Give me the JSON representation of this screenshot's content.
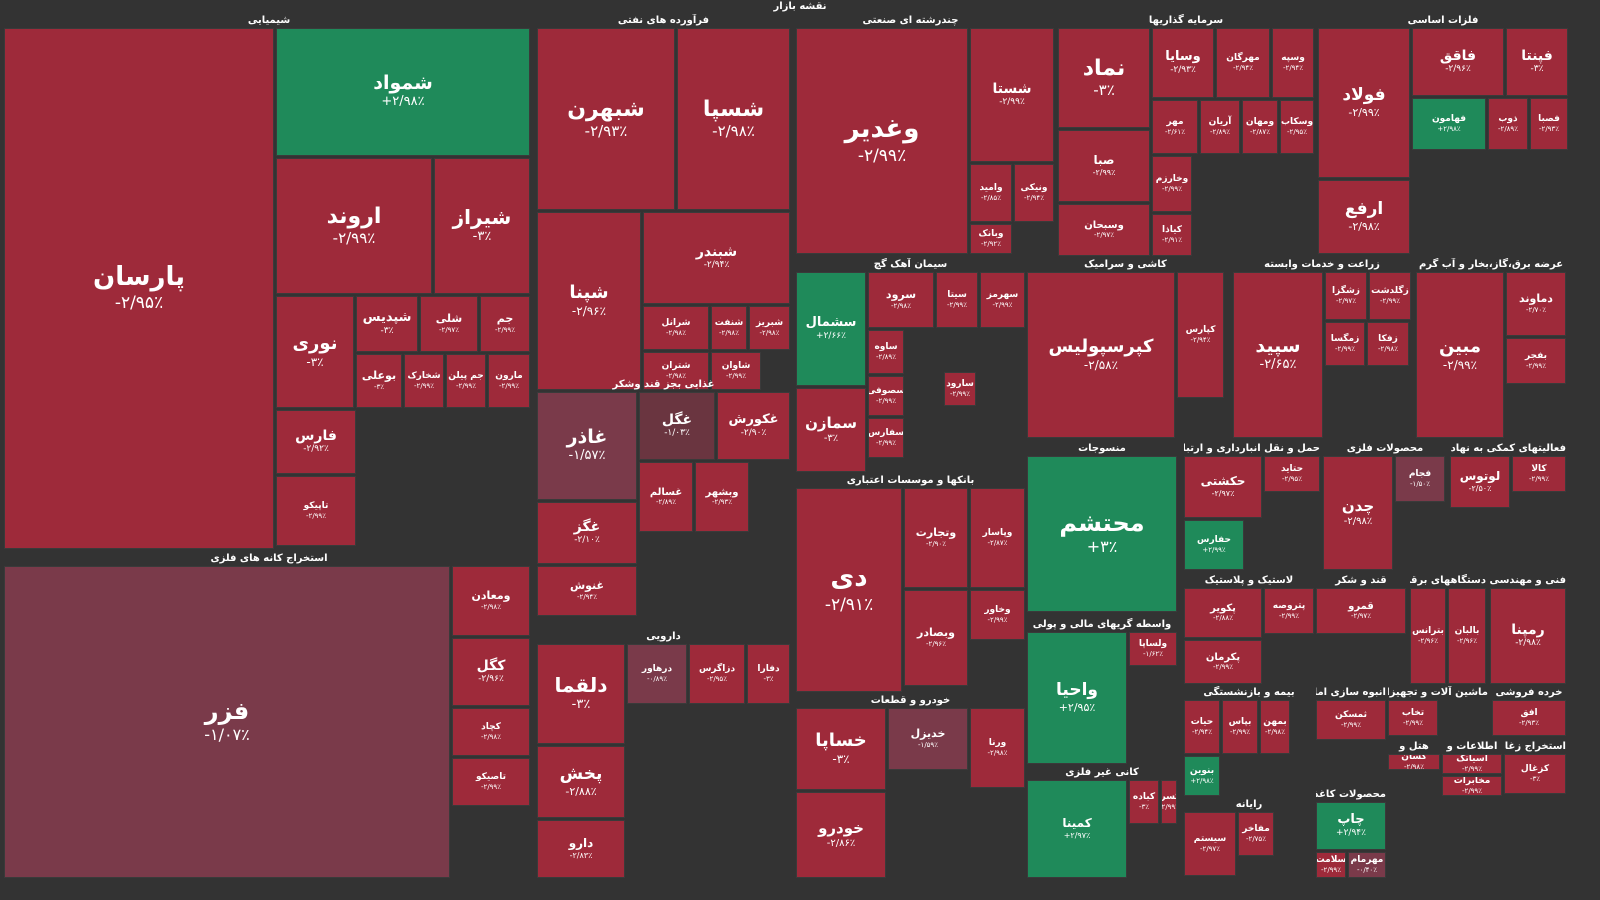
{
  "title": "نقشه بازار",
  "colors": {
    "down": "#9e2a3a",
    "up": "#1f8a5a",
    "neutral": "#7a3a4a",
    "mild": "#6a3540"
  },
  "sectors": [
    {
      "name": "شیمیایی",
      "tiles": [
        {
          "s": "پارسان",
          "p": "-۲/۹۵٪",
          "c": "down"
        },
        {
          "s": "شمواد",
          "p": "+۲/۹۸٪",
          "c": "up"
        },
        {
          "s": "اروند",
          "p": "-۲/۹۹٪",
          "c": "down"
        },
        {
          "s": "شیراز",
          "p": "-۳٪",
          "c": "down"
        },
        {
          "s": "نوری",
          "p": "-۳٪",
          "c": "down"
        },
        {
          "s": "شپدیس",
          "p": "-۳٪",
          "c": "down"
        },
        {
          "s": "شلی",
          "p": "-۲/۹۷٪",
          "c": "down"
        },
        {
          "s": "جم",
          "p": "-۲/۹۹٪",
          "c": "down"
        },
        {
          "s": "بوعلی",
          "p": "-۳٪",
          "c": "down"
        },
        {
          "s": "شخارک",
          "p": "-۲/۹۹٪",
          "c": "down"
        },
        {
          "s": "جم پیلن",
          "p": "-۲/۹۹٪",
          "c": "down"
        },
        {
          "s": "مارون",
          "p": "-۲/۹۹٪",
          "c": "down"
        },
        {
          "s": "فارس",
          "p": "-۲/۹۲٪",
          "c": "down"
        },
        {
          "s": "تاپیکو",
          "p": "-۲/۹۹٪",
          "c": "down"
        }
      ]
    },
    {
      "name": "فرآورده های نفتی",
      "tiles": [
        {
          "s": "شبهرن",
          "p": "-۲/۹۳٪",
          "c": "down"
        },
        {
          "s": "شسپا",
          "p": "-۲/۹۸٪",
          "c": "down"
        },
        {
          "s": "شپنا",
          "p": "-۲/۹۶٪",
          "c": "down"
        },
        {
          "s": "شبندر",
          "p": "-۲/۹۴٪",
          "c": "down"
        },
        {
          "s": "شرانل",
          "p": "-۲/۹۸٪",
          "c": "down"
        },
        {
          "s": "شنفت",
          "p": "-۲/۹۸٪",
          "c": "down"
        },
        {
          "s": "شبریز",
          "p": "-۲/۹۸٪",
          "c": "down"
        },
        {
          "s": "شتران",
          "p": "-۲/۹۸٪",
          "c": "down"
        },
        {
          "s": "شاوان",
          "p": "-۲/۹۹٪",
          "c": "down"
        }
      ]
    },
    {
      "name": "چندرشته ای صنعتی",
      "tiles": [
        {
          "s": "وغدیر",
          "p": "-۲/۹۹٪",
          "c": "down"
        },
        {
          "s": "شستا",
          "p": "-۲/۹۹٪",
          "c": "down"
        },
        {
          "s": "وامید",
          "p": "-۲/۸۵٪",
          "c": "down"
        },
        {
          "s": "ونیکی",
          "p": "-۲/۹۴٪",
          "c": "down"
        },
        {
          "s": "وبانک",
          "p": "-۲/۹۲٪",
          "c": "down"
        }
      ]
    },
    {
      "name": "سرمایه گذاریها",
      "tiles": [
        {
          "s": "نماد",
          "p": "-۳٪",
          "c": "down"
        },
        {
          "s": "صبا",
          "p": "-۲/۹۹٪",
          "c": "down"
        },
        {
          "s": "وسبحان",
          "p": "-۲/۹۷٪",
          "c": "down"
        },
        {
          "s": "وسایا",
          "p": "-۲/۹۳٪",
          "c": "down"
        },
        {
          "s": "مهرگان",
          "p": "-۲/۹۴٪",
          "c": "down"
        },
        {
          "s": "وسپه",
          "p": "-۲/۹۴٪",
          "c": "down"
        },
        {
          "s": "مهر",
          "p": "-۲/۶۱٪",
          "c": "down"
        },
        {
          "s": "آریان",
          "p": "-۲/۸۹٪",
          "c": "down"
        },
        {
          "s": "ومهان",
          "p": "-۲/۸۷٪",
          "c": "down"
        },
        {
          "s": "وسکاب",
          "p": "-۲/۹۵٪",
          "c": "down"
        },
        {
          "s": "وخارزم",
          "p": "-۲/۹۹٪",
          "c": "down"
        },
        {
          "s": "کیاذا",
          "p": "-۲/۹۱٪",
          "c": "down"
        }
      ]
    },
    {
      "name": "فلزات اساسی",
      "tiles": [
        {
          "s": "فولاد",
          "p": "-۲/۹۹٪",
          "c": "down"
        },
        {
          "s": "فاقق",
          "p": "-۲/۹۶٪",
          "c": "down"
        },
        {
          "s": "فپنتا",
          "p": "-۳٪",
          "c": "down"
        },
        {
          "s": "فهامون",
          "p": "+۲/۹۸٪",
          "c": "up"
        },
        {
          "s": "ارفع",
          "p": "-۲/۹۸٪",
          "c": "down"
        },
        {
          "s": "ذوب",
          "p": "-۲/۸۹٪",
          "c": "down"
        },
        {
          "s": "فصبا",
          "p": "-۲/۹۳٪",
          "c": "down"
        }
      ]
    },
    {
      "name": "سیمان آهک گچ",
      "tiles": [
        {
          "s": "سشمال",
          "p": "+۲/۶۶٪",
          "c": "up"
        },
        {
          "s": "سرود",
          "p": "-۲/۹۸٪",
          "c": "down"
        },
        {
          "s": "سیتا",
          "p": "-۲/۹۹٪",
          "c": "down"
        },
        {
          "s": "سهرمز",
          "p": "-۲/۹۹٪",
          "c": "down"
        },
        {
          "s": "سمازن",
          "p": "-۳٪",
          "c": "down"
        },
        {
          "s": "ساوه",
          "p": "-۲/۸۹٪",
          "c": "down"
        },
        {
          "s": "سارود",
          "p": "-۲/۹۹٪",
          "c": "down"
        },
        {
          "s": "سصوفی",
          "p": "-۲/۹۹٪",
          "c": "down"
        },
        {
          "s": "سفارس",
          "p": "-۲/۹۹٪",
          "c": "down"
        }
      ]
    },
    {
      "name": "کاشی و سرامیک",
      "tiles": [
        {
          "s": "کپرسپولیس",
          "p": "-۲/۵۸٪",
          "c": "down"
        },
        {
          "s": "کپارس",
          "p": "-۲/۹۴٪",
          "c": "down"
        }
      ]
    },
    {
      "name": "زراعت و خدمات وابسته",
      "tiles": [
        {
          "s": "سپید",
          "p": "-۲/۶۵٪",
          "c": "down"
        },
        {
          "s": "زشگزا",
          "p": "-۲/۹۷٪",
          "c": "down"
        },
        {
          "s": "زگلدشت",
          "p": "-۲/۹۹٪",
          "c": "down"
        },
        {
          "s": "زمگسا",
          "p": "-۲/۹۹٪",
          "c": "down"
        },
        {
          "s": "زفکا",
          "p": "-۲/۹۸٪",
          "c": "down"
        }
      ]
    },
    {
      "name": "عرضه برق،گاز،بخار و آب گرم",
      "tiles": [
        {
          "s": "مبین",
          "p": "-۲/۹۹٪",
          "c": "down"
        },
        {
          "s": "دماوند",
          "p": "-۲/۷۰٪",
          "c": "down"
        },
        {
          "s": "بفجر",
          "p": "-۲/۹۹٪",
          "c": "down"
        }
      ]
    },
    {
      "name": "غذایی بجز قند وشکر",
      "tiles": [
        {
          "s": "غاذر",
          "p": "-۱/۵۷٪",
          "c": "neutral"
        },
        {
          "s": "غگل",
          "p": "-۱/۰۳٪",
          "c": "mild"
        },
        {
          "s": "غکورش",
          "p": "-۲/۹۰٪",
          "c": "down"
        },
        {
          "s": "غسالم",
          "p": "-۲/۸۹٪",
          "c": "down"
        },
        {
          "s": "وبشهر",
          "p": "-۲/۹۳٪",
          "c": "down"
        },
        {
          "s": "غگز",
          "p": "-۲/۱۰٪",
          "c": "down"
        },
        {
          "s": "غنوش",
          "p": "-۲/۹۴٪",
          "c": "down"
        }
      ]
    },
    {
      "name": "دارویی",
      "tiles": [
        {
          "s": "دلقما",
          "p": "-۳٪",
          "c": "down"
        },
        {
          "s": "درهاور",
          "p": "-۰/۸۹٪",
          "c": "neutral"
        },
        {
          "s": "دزاگرس",
          "p": "-۲/۹۵٪",
          "c": "down"
        },
        {
          "s": "دفارا",
          "p": "-۳٪",
          "c": "down"
        },
        {
          "s": "پخش",
          "p": "-۲/۸۸٪",
          "c": "down"
        },
        {
          "s": "دارو",
          "p": "-۲/۸۳٪",
          "c": "down"
        }
      ]
    },
    {
      "name": "استخراج کانه های فلزی",
      "tiles": [
        {
          "s": "فزر",
          "p": "-۱/۰۷٪",
          "c": "neutral"
        },
        {
          "s": "ومعادن",
          "p": "-۲/۹۸٪",
          "c": "down"
        },
        {
          "s": "کگل",
          "p": "-۲/۹۶٪",
          "c": "down"
        },
        {
          "s": "کچاد",
          "p": "-۲/۹۸٪",
          "c": "down"
        },
        {
          "s": "تاصیکو",
          "p": "-۲/۹۹٪",
          "c": "down"
        }
      ]
    },
    {
      "name": "بانکها و موسسات اعتباری",
      "tiles": [
        {
          "s": "دی",
          "p": "-۲/۹۱٪",
          "c": "down"
        },
        {
          "s": "وتجارت",
          "p": "-۲/۹۰٪",
          "c": "down"
        },
        {
          "s": "وپاسار",
          "p": "-۲/۸۷٪",
          "c": "down"
        },
        {
          "s": "وبصادر",
          "p": "-۲/۹۶٪",
          "c": "down"
        },
        {
          "s": "وخاور",
          "p": "-۲/۹۹٪",
          "c": "down"
        }
      ]
    },
    {
      "name": "خودرو و قطعات",
      "tiles": [
        {
          "s": "خساپا",
          "p": "-۳٪",
          "c": "down"
        },
        {
          "s": "خدیزل",
          "p": "-۱/۵۹٪",
          "c": "neutral"
        },
        {
          "s": "ورنا",
          "p": "-۲/۹۸٪",
          "c": "down"
        },
        {
          "s": "خودرو",
          "p": "-۲/۸۶٪",
          "c": "down"
        }
      ]
    },
    {
      "name": "منسوجات",
      "tiles": [
        {
          "s": "محتشم",
          "p": "+۳٪",
          "c": "up"
        }
      ]
    },
    {
      "name": "واسطه گریهای مالی و پولی",
      "tiles": [
        {
          "s": "واحیا",
          "p": "+۲/۹۵٪",
          "c": "up"
        },
        {
          "s": "ولساپا",
          "p": "-۱/۶۲٪",
          "c": "down"
        }
      ]
    },
    {
      "name": "کانی غیر فلزی",
      "tiles": [
        {
          "s": "کمینا",
          "p": "+۲/۹۷٪",
          "c": "up"
        },
        {
          "s": "کباده",
          "p": "-۳٪",
          "c": "down"
        },
        {
          "s": "کسرا",
          "p": "-۲/۹۹٪",
          "c": "down"
        }
      ]
    },
    {
      "name": "حمل و نقل انبارداری و ارتباطات",
      "tiles": [
        {
          "s": "حکشتی",
          "p": "-۲/۹۷٪",
          "c": "down"
        },
        {
          "s": "حتاید",
          "p": "-۲/۹۵٪",
          "c": "down"
        },
        {
          "s": "حفارس",
          "p": "+۲/۹۹٪",
          "c": "up"
        }
      ]
    },
    {
      "name": "محصولات فلزی",
      "tiles": [
        {
          "s": "چدن",
          "p": "-۲/۹۸٪",
          "c": "down"
        },
        {
          "s": "فجام",
          "p": "-۱/۵۰٪",
          "c": "neutral"
        }
      ]
    },
    {
      "name": "فعالیتهای کمکی به نهاد های",
      "tiles": [
        {
          "s": "لوتوس",
          "p": "-۲/۵۰٪",
          "c": "down"
        },
        {
          "s": "کالا",
          "p": "-۲/۹۹٪",
          "c": "down"
        }
      ]
    },
    {
      "name": "لاستیک و پلاستیک",
      "tiles": [
        {
          "s": "پکویر",
          "p": "-۲/۸۸٪",
          "c": "down"
        },
        {
          "s": "پتروصه",
          "p": "-۲/۹۹٪",
          "c": "down"
        },
        {
          "s": "پکرمان",
          "p": "-۲/۹۹٪",
          "c": "down"
        }
      ]
    },
    {
      "name": "قند و شکر",
      "tiles": [
        {
          "s": "قمرو",
          "p": "-۲/۹۷٪",
          "c": "down"
        }
      ]
    },
    {
      "name": "دستگاههای برقی",
      "tiles": [
        {
          "s": "بترانس",
          "p": "-۲/۹۶٪",
          "c": "down"
        },
        {
          "s": "بالبان",
          "p": "-۲/۹۶٪",
          "c": "down"
        }
      ]
    },
    {
      "name": "فنی و مهندسی",
      "tiles": [
        {
          "s": "رمپنا",
          "p": "-۲/۹۸٪",
          "c": "down"
        }
      ]
    },
    {
      "name": "بیمه و بازنشستگی",
      "tiles": [
        {
          "s": "حیات",
          "p": "-۲/۹۴٪",
          "c": "down"
        },
        {
          "s": "بپاس",
          "p": "-۲/۹۹٪",
          "c": "down"
        },
        {
          "s": "بمهن",
          "p": "-۲/۹۸٪",
          "c": "down"
        },
        {
          "s": "بنوین",
          "p": "+۲/۹۸٪",
          "c": "up"
        }
      ]
    },
    {
      "name": "انبوه سازی املاک",
      "tiles": [
        {
          "s": "ثمسکن",
          "p": "-۲/۹۹٪",
          "c": "down"
        }
      ]
    },
    {
      "name": "ماشین آلات و تجهیزات",
      "tiles": [
        {
          "s": "تخاب",
          "p": "-۲/۹۹٪",
          "c": "down"
        }
      ]
    },
    {
      "name": "خرده فروشی",
      "tiles": [
        {
          "s": "افق",
          "p": "-۲/۹۳٪",
          "c": "down"
        }
      ]
    },
    {
      "name": "رایانه",
      "tiles": [
        {
          "s": "سیستم",
          "p": "-۲/۹۷٪",
          "c": "down"
        },
        {
          "s": "مفاخر",
          "p": "-۲/۷۵٪",
          "c": "down"
        }
      ]
    },
    {
      "name": "محصولات کاغذی",
      "tiles": [
        {
          "s": "چاپ",
          "p": "+۲/۹۴٪",
          "c": "up"
        },
        {
          "s": "سلامت",
          "p": "-۲/۹۹٪",
          "c": "down"
        },
        {
          "s": "مهرمام",
          "p": "-۰/۴۰٪",
          "c": "neutral"
        }
      ]
    },
    {
      "name": "هتل و",
      "tiles": [
        {
          "s": "گشان",
          "p": "-۲/۹۸٪",
          "c": "down"
        }
      ]
    },
    {
      "name": "اطلاعات و",
      "tiles": [
        {
          "s": "اسیاتک",
          "p": "-۲/۹۹٪",
          "c": "down"
        },
        {
          "s": "مخابرات",
          "p": "-۲/۹۹٪",
          "c": "down"
        }
      ]
    },
    {
      "name": "استخراج زغال",
      "tiles": [
        {
          "s": "کزغال",
          "p": "-۳٪",
          "c": "down"
        }
      ]
    }
  ]
}
